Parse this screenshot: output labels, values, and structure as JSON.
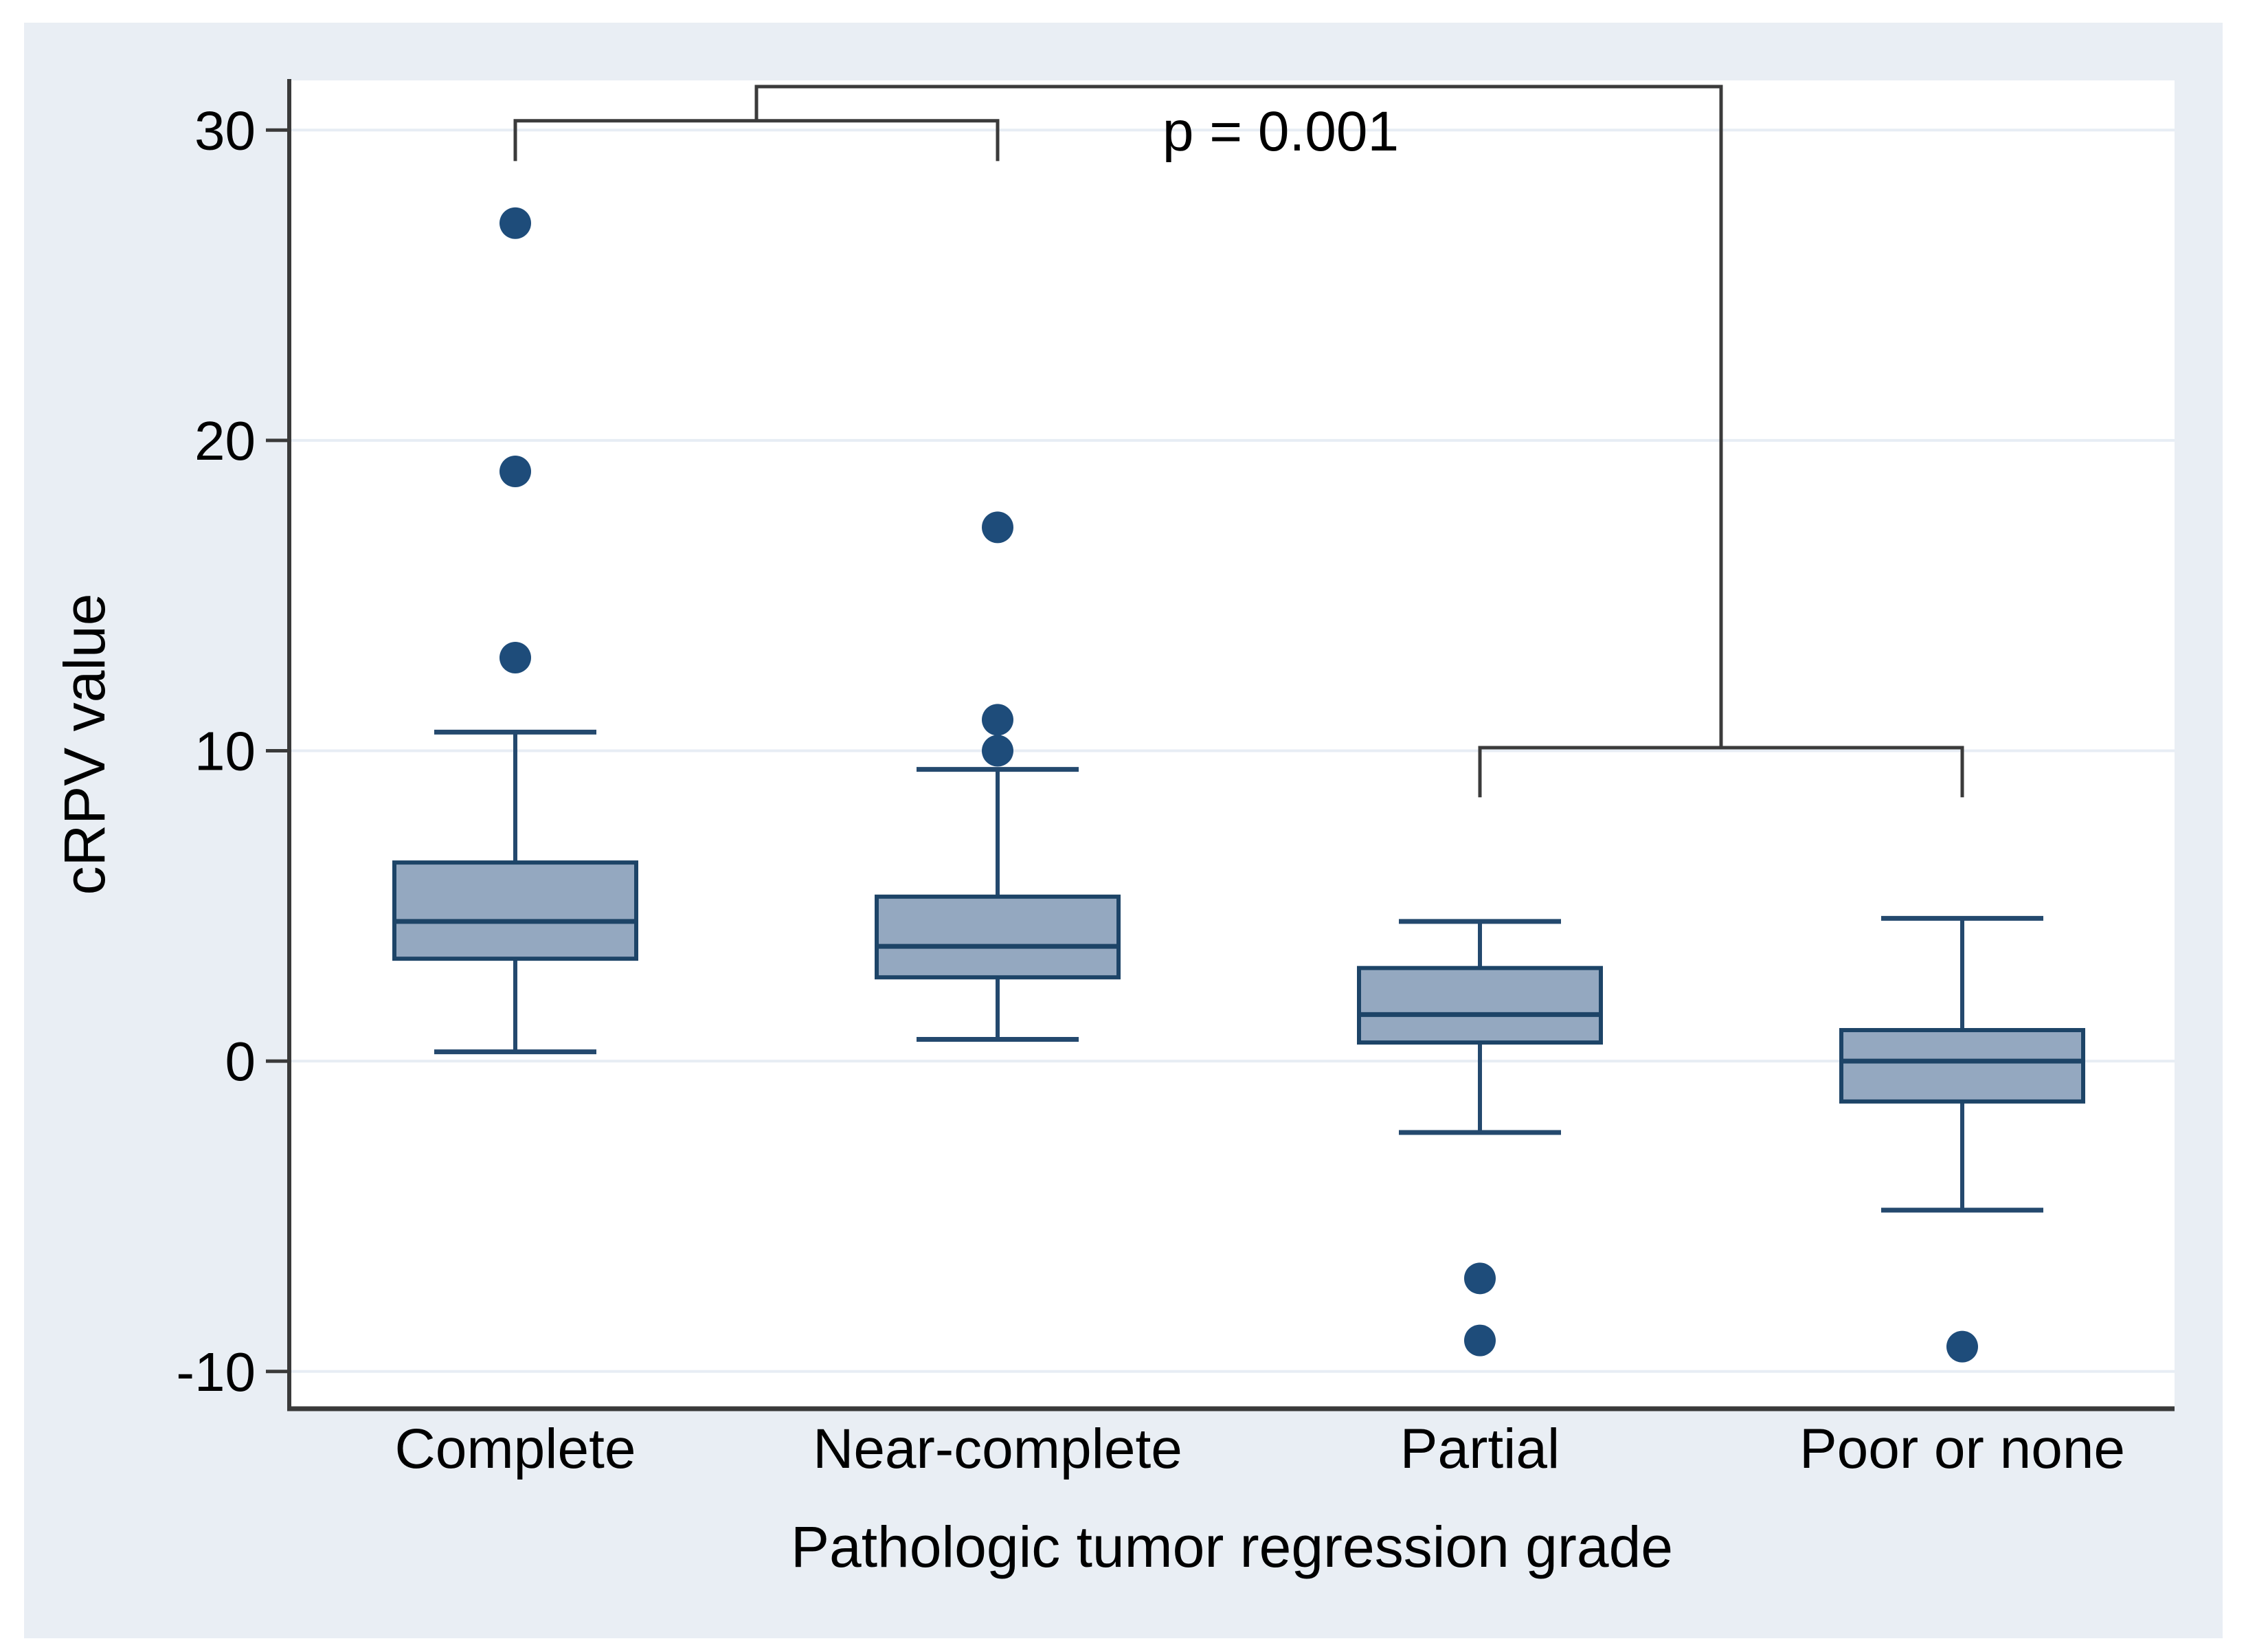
{
  "style": {
    "figure_bg": "#ffffff",
    "panel_bg": "#e9eef4",
    "plot_bg": "#ffffff",
    "grid_color": "#e7edf4",
    "spine_color": "#3a3a3a",
    "tick_color": "#3a3a3a",
    "bracket_color": "#3b3b3b",
    "box_fill": "#94a8c0",
    "box_stroke": "#1d4467",
    "whisker_color": "#24496e",
    "outlier_color": "#1e4c7a",
    "text_color": "#000000"
  },
  "chart_data": {
    "type": "box",
    "title": "",
    "ylabel": "cRPV value",
    "xlabel": "Pathologic tumor regression grade",
    "categories": [
      "Complete",
      "Near-complete",
      "Partial",
      "Poor or none"
    ],
    "yticks": [
      30,
      20,
      10,
      0,
      -10
    ],
    "ylim": [
      -11.2,
      31.6
    ],
    "grid": "horizontal-gridlines-on",
    "legend": "none",
    "series": [
      {
        "name": "Complete",
        "whisker_low": 0.3,
        "q1": 3.3,
        "median": 4.5,
        "q3": 6.4,
        "whisker_high": 10.6,
        "outliers": [
          13,
          19,
          27
        ]
      },
      {
        "name": "Near-complete",
        "whisker_low": 0.7,
        "q1": 2.7,
        "median": 3.7,
        "q3": 5.3,
        "whisker_high": 9.4,
        "outliers": [
          10,
          11,
          17.2
        ]
      },
      {
        "name": "Partial",
        "whisker_low": -2.3,
        "q1": 0.6,
        "median": 1.5,
        "q3": 3.0,
        "whisker_high": 4.5,
        "outliers": [
          -7,
          -9
        ]
      },
      {
        "name": "Poor or none",
        "whisker_low": -4.8,
        "q1": -1.3,
        "median": 0.0,
        "q3": 1.0,
        "whisker_high": 4.6,
        "outliers": [
          -9.2
        ]
      }
    ],
    "annotations": {
      "p_label": {
        "text": "p = 0.001"
      },
      "comparison_brackets": [
        {
          "groups": [
            0,
            1
          ],
          "bar_value": 30.3,
          "tick_value": 29.0
        },
        {
          "groups": [
            2,
            3
          ],
          "bar_value": 10.1,
          "tick_value": 8.5
        }
      ],
      "connector": {
        "from_groups": [
          0,
          1
        ],
        "to_groups": [
          2,
          3
        ],
        "bar_value": 31.4
      }
    }
  }
}
